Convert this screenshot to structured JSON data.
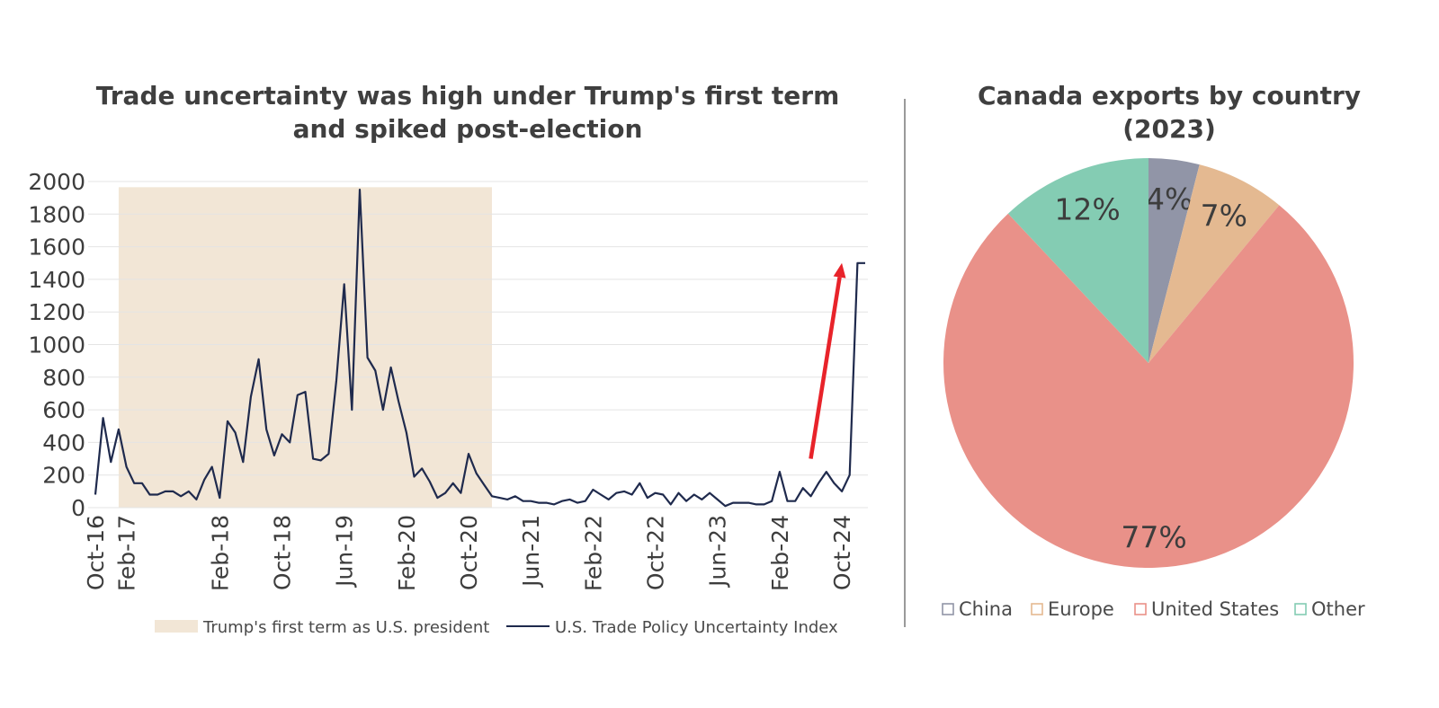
{
  "line_panel": {
    "title": "Trade uncertainty was high under Trump's first term and spiked post-election"
  },
  "pie_panel": {
    "title": "Canada exports by country (2023)"
  },
  "chart_data": [
    {
      "type": "line",
      "title": "Trade uncertainty was high under Trump's first term and spiked post-election",
      "xlabel": "",
      "ylabel": "",
      "ylim": [
        0,
        2000
      ],
      "yticks": [
        0,
        200,
        400,
        600,
        800,
        1000,
        1200,
        1400,
        1600,
        1800,
        2000
      ],
      "x_tick_labels": [
        "Oct-16",
        "Feb-17",
        "Feb-18",
        "Oct-18",
        "Jun-19",
        "Feb-20",
        "Oct-20",
        "Jun-21",
        "Feb-22",
        "Oct-22",
        "Jun-23",
        "Feb-24",
        "Oct-24"
      ],
      "x_range": [
        "2016-10",
        "2025-01"
      ],
      "grid": "horizontal",
      "legend_position": "bottom",
      "shaded_region": {
        "label": "Trump's first term as U.S. president",
        "start": "2017-01",
        "end": "2021-01",
        "color": "#f2e6d6"
      },
      "annotation": {
        "type": "arrow",
        "color": "#e8232a",
        "from": [
          "2024-06",
          300
        ],
        "to": [
          "2024-10",
          1500
        ]
      },
      "series": [
        {
          "name": "U.S. Trade Policy Uncertainty Index",
          "color": "#1f2a4d",
          "x": [
            "2016-10",
            "2016-11",
            "2016-12",
            "2017-01",
            "2017-02",
            "2017-03",
            "2017-04",
            "2017-05",
            "2017-06",
            "2017-07",
            "2017-08",
            "2017-09",
            "2017-10",
            "2017-11",
            "2017-12",
            "2018-01",
            "2018-02",
            "2018-03",
            "2018-04",
            "2018-05",
            "2018-06",
            "2018-07",
            "2018-08",
            "2018-09",
            "2018-10",
            "2018-11",
            "2018-12",
            "2019-01",
            "2019-02",
            "2019-03",
            "2019-04",
            "2019-05",
            "2019-06",
            "2019-07",
            "2019-08",
            "2019-09",
            "2019-10",
            "2019-11",
            "2019-12",
            "2020-01",
            "2020-02",
            "2020-03",
            "2020-04",
            "2020-05",
            "2020-06",
            "2020-07",
            "2020-08",
            "2020-09",
            "2020-10",
            "2020-11",
            "2020-12",
            "2021-01",
            "2021-02",
            "2021-03",
            "2021-04",
            "2021-05",
            "2021-06",
            "2021-07",
            "2021-08",
            "2021-09",
            "2021-10",
            "2021-11",
            "2021-12",
            "2022-01",
            "2022-02",
            "2022-03",
            "2022-04",
            "2022-05",
            "2022-06",
            "2022-07",
            "2022-08",
            "2022-09",
            "2022-10",
            "2022-11",
            "2022-12",
            "2023-01",
            "2023-02",
            "2023-03",
            "2023-04",
            "2023-05",
            "2023-06",
            "2023-07",
            "2023-08",
            "2023-09",
            "2023-10",
            "2023-11",
            "2023-12",
            "2024-01",
            "2024-02",
            "2024-03",
            "2024-04",
            "2024-05",
            "2024-06",
            "2024-07",
            "2024-08",
            "2024-09",
            "2024-10",
            "2024-11",
            "2024-12",
            "2025-01"
          ],
          "values": [
            80,
            550,
            280,
            480,
            250,
            150,
            150,
            80,
            80,
            100,
            100,
            70,
            100,
            50,
            170,
            250,
            60,
            530,
            460,
            280,
            680,
            910,
            480,
            320,
            450,
            400,
            690,
            710,
            300,
            290,
            330,
            780,
            1370,
            600,
            1950,
            920,
            840,
            600,
            860,
            650,
            460,
            190,
            240,
            160,
            60,
            90,
            150,
            90,
            330,
            210,
            140,
            70,
            60,
            50,
            70,
            40,
            40,
            30,
            30,
            20,
            40,
            50,
            30,
            40,
            110,
            80,
            50,
            90,
            100,
            80,
            150,
            60,
            90,
            80,
            20,
            90,
            40,
            80,
            50,
            90,
            50,
            10,
            30,
            30,
            30,
            20,
            20,
            40,
            220,
            40,
            40,
            120,
            70,
            150,
            220,
            150,
            100,
            200,
            1500,
            1500
          ]
        }
      ]
    },
    {
      "type": "pie",
      "title": "Canada exports by country (2023)",
      "legend_position": "bottom",
      "slices": [
        {
          "label": "China",
          "value": 4,
          "display": "4%",
          "color": "#9195a7"
        },
        {
          "label": "Europe",
          "value": 7,
          "display": "7%",
          "color": "#e4b991"
        },
        {
          "label": "United States",
          "value": 77,
          "display": "77%",
          "color": "#e99189"
        },
        {
          "label": "Other",
          "value": 12,
          "display": "12%",
          "color": "#84ccb3"
        }
      ]
    }
  ]
}
